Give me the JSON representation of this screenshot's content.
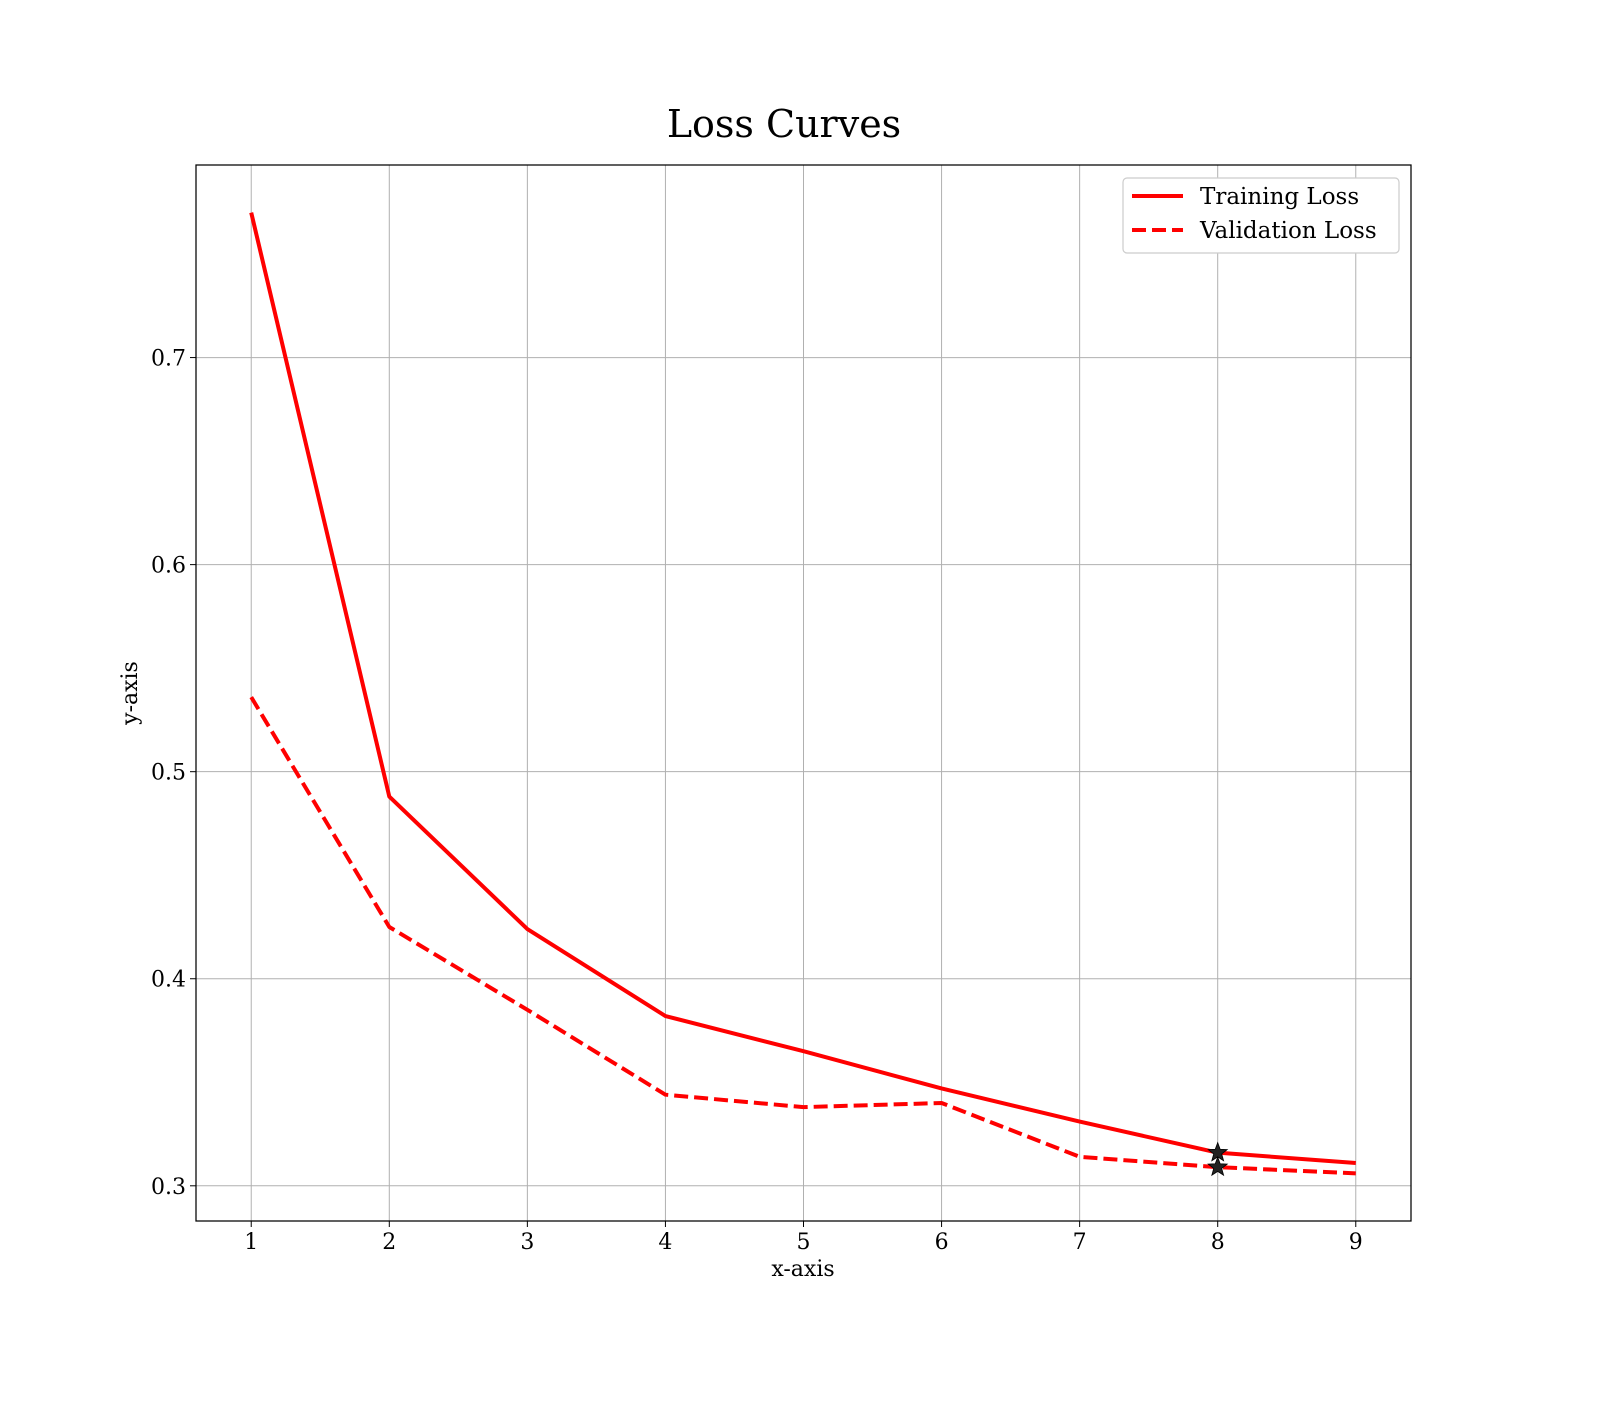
{
  "chart_data": {
    "type": "line",
    "title": "Loss Curves",
    "xlabel": "x-axis",
    "ylabel": "y-axis",
    "x": [
      1,
      2,
      3,
      4,
      5,
      6,
      7,
      8,
      9
    ],
    "xlim": [
      0.6,
      9.4
    ],
    "ylim": [
      0.283,
      0.793
    ],
    "xticks": [
      1,
      2,
      3,
      4,
      5,
      6,
      7,
      8,
      9
    ],
    "yticks": [
      0.3,
      0.4,
      0.5,
      0.6,
      0.7
    ],
    "ytick_labels": [
      "0.3",
      "0.4",
      "0.5",
      "0.6",
      "0.7"
    ],
    "grid": true,
    "legend_position": "top-right",
    "series": [
      {
        "name": "Training Loss",
        "line_style": "solid",
        "color": "#ff0000",
        "values": [
          0.77,
          0.488,
          0.424,
          0.382,
          0.365,
          0.347,
          0.331,
          0.316,
          0.311
        ]
      },
      {
        "name": "Validation Loss",
        "line_style": "dashed",
        "color": "#ff0000",
        "values": [
          0.536,
          0.425,
          0.385,
          0.344,
          0.338,
          0.34,
          0.314,
          0.309,
          0.306
        ]
      }
    ],
    "markers": [
      {
        "series": "Training Loss",
        "x": 8,
        "y": 0.316,
        "shape": "star"
      },
      {
        "series": "Validation Loss",
        "x": 8,
        "y": 0.309,
        "shape": "star"
      }
    ]
  }
}
